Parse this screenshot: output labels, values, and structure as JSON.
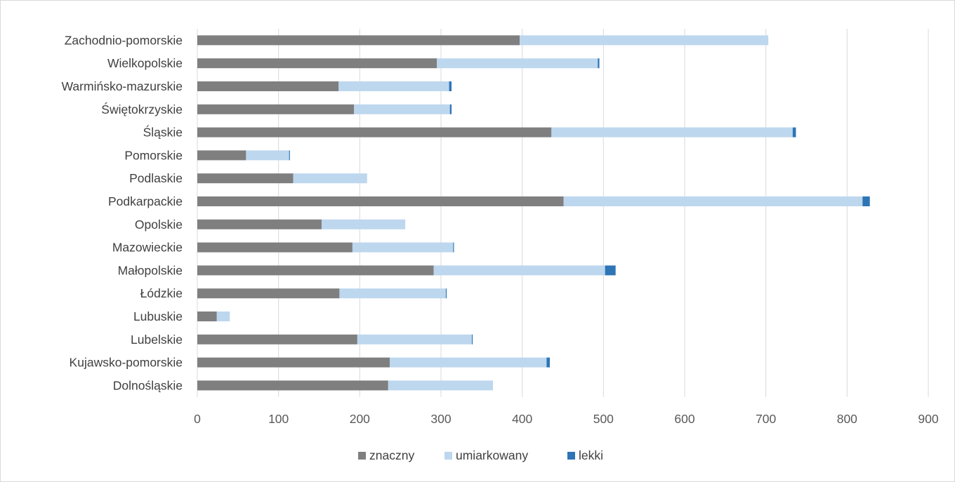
{
  "chart_data": {
    "type": "bar",
    "orientation": "horizontal",
    "stacked": true,
    "categories": [
      "Zachodnio-pomorskie",
      "Wielkopolskie",
      "Warmińsko-mazurskie",
      "Świętokrzyskie",
      "Śląskie",
      "Pomorskie",
      "Podlaskie",
      "Podkarpackie",
      "Opolskie",
      "Mazowieckie",
      "Małopolskie",
      "Łódzkie",
      "Lubuskie",
      "Lubelskie",
      "Kujawsko-pomorskie",
      "Dolnośląskie"
    ],
    "series": [
      {
        "name": "znaczny",
        "color": "#7f7f7f",
        "values": [
          397,
          295,
          174,
          193,
          436,
          60,
          118,
          451,
          153,
          191,
          291,
          175,
          24,
          197,
          237,
          235
        ]
      },
      {
        "name": "umiarkowany",
        "color": "#bdd7ee",
        "values": [
          306,
          198,
          136,
          118,
          297,
          53,
          91,
          368,
          103,
          124,
          211,
          131,
          16,
          141,
          193,
          129
        ]
      },
      {
        "name": "lekki",
        "color": "#2e75b6",
        "values": [
          0,
          2,
          3,
          2,
          4,
          1,
          0,
          9,
          0,
          1,
          13,
          1,
          0,
          1,
          4,
          0
        ]
      }
    ],
    "xlim": [
      0,
      900
    ],
    "xticks": [
      "0",
      "100",
      "200",
      "300",
      "400",
      "500",
      "600",
      "700",
      "800",
      "900"
    ],
    "title": "",
    "xlabel": "",
    "ylabel": "",
    "grid": "vertical",
    "legend": "bottom"
  }
}
